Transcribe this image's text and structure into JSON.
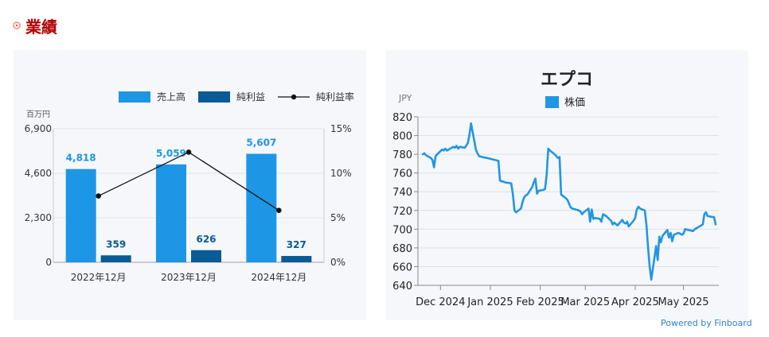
{
  "section": {
    "title": "業績"
  },
  "chart_data": [
    {
      "type": "bar",
      "categories": [
        "2022年12月",
        "2023年12月",
        "2024年12月"
      ],
      "series": [
        {
          "name": "売上高",
          "type": "bar",
          "axis": "left",
          "color": "#1e96e6",
          "values": [
            4818,
            5059,
            5607
          ],
          "labels": [
            "4,818",
            "5,059",
            "5,607"
          ]
        },
        {
          "name": "純利益",
          "type": "bar",
          "axis": "left",
          "color": "#0a5a96",
          "values": [
            359,
            626,
            327
          ],
          "labels": [
            "359",
            "626",
            "327"
          ]
        },
        {
          "name": "純利益率",
          "type": "line",
          "axis": "right",
          "color": "#111111",
          "values": [
            7.45,
            12.37,
            5.83
          ]
        }
      ],
      "y_left": {
        "unit": "百万円",
        "ylim": [
          0,
          6900
        ],
        "ticks": [
          0,
          2300,
          4600,
          6900
        ],
        "tick_labels": [
          "0",
          "2,300",
          "4,600",
          "6,900"
        ]
      },
      "y_right": {
        "ylim": [
          0,
          15
        ],
        "ticks": [
          0,
          5,
          10,
          15
        ],
        "tick_labels": [
          "0%",
          "5%",
          "10%",
          "15%"
        ]
      },
      "grid": true,
      "legend": "top-right"
    },
    {
      "type": "line",
      "title": "エプコ",
      "ylabel": "JPY",
      "series": [
        {
          "name": "株価",
          "color": "#2196e3",
          "points": [
            [
              "2024-11-20",
              780
            ],
            [
              "2024-11-21",
              781
            ],
            [
              "2024-11-22",
              779
            ],
            [
              "2024-11-25",
              776
            ],
            [
              "2024-11-26",
              774
            ],
            [
              "2024-11-27",
              766
            ],
            [
              "2024-11-28",
              778
            ],
            [
              "2024-11-29",
              780
            ],
            [
              "2024-12-02",
              785
            ],
            [
              "2024-12-03",
              784
            ],
            [
              "2024-12-04",
              786
            ],
            [
              "2024-12-05",
              784
            ],
            [
              "2024-12-06",
              785
            ],
            [
              "2024-12-09",
              788
            ],
            [
              "2024-12-10",
              787
            ],
            [
              "2024-12-11",
              789
            ],
            [
              "2024-12-12",
              786
            ],
            [
              "2024-12-13",
              788
            ],
            [
              "2024-12-16",
              787
            ],
            [
              "2024-12-17",
              789
            ],
            [
              "2024-12-18",
              792
            ],
            [
              "2024-12-19",
              801
            ],
            [
              "2024-12-20",
              813
            ],
            [
              "2024-12-23",
              785
            ],
            [
              "2024-12-24",
              781
            ],
            [
              "2024-12-25",
              778
            ],
            [
              "2024-12-27",
              777
            ],
            [
              "2024-12-30",
              776
            ],
            [
              "2025-01-06",
              773
            ],
            [
              "2025-01-07",
              752
            ],
            [
              "2025-01-08",
              751
            ],
            [
              "2025-01-09",
              751
            ],
            [
              "2025-01-10",
              750
            ],
            [
              "2025-01-14",
              749
            ],
            [
              "2025-01-15",
              737
            ],
            [
              "2025-01-16",
              720
            ],
            [
              "2025-01-17",
              718
            ],
            [
              "2025-01-20",
              722
            ],
            [
              "2025-01-21",
              729
            ],
            [
              "2025-01-22",
              734
            ],
            [
              "2025-01-23",
              736
            ],
            [
              "2025-01-24",
              737
            ],
            [
              "2025-01-27",
              745
            ],
            [
              "2025-01-28",
              750
            ],
            [
              "2025-01-29",
              754
            ],
            [
              "2025-01-30",
              738
            ],
            [
              "2025-01-31",
              741
            ],
            [
              "2025-02-03",
              742
            ],
            [
              "2025-02-04",
              743
            ],
            [
              "2025-02-05",
              758
            ],
            [
              "2025-02-06",
              786
            ],
            [
              "2025-02-07",
              784
            ],
            [
              "2025-02-10",
              780
            ],
            [
              "2025-02-12",
              776
            ],
            [
              "2025-02-13",
              777
            ],
            [
              "2025-02-14",
              737
            ],
            [
              "2025-02-17",
              733
            ],
            [
              "2025-02-18",
              731
            ],
            [
              "2025-02-19",
              727
            ],
            [
              "2025-02-20",
              723
            ],
            [
              "2025-02-21",
              722
            ],
            [
              "2025-02-25",
              720
            ],
            [
              "2025-02-26",
              719
            ],
            [
              "2025-02-27",
              716
            ],
            [
              "2025-02-28",
              718
            ],
            [
              "2025-03-03",
              722
            ],
            [
              "2025-03-04",
              708
            ],
            [
              "2025-03-05",
              721
            ],
            [
              "2025-03-06",
              711
            ],
            [
              "2025-03-07",
              712
            ],
            [
              "2025-03-10",
              711
            ],
            [
              "2025-03-11",
              708
            ],
            [
              "2025-03-12",
              716
            ],
            [
              "2025-03-13",
              715
            ],
            [
              "2025-03-14",
              714
            ],
            [
              "2025-03-17",
              709
            ],
            [
              "2025-03-18",
              705
            ],
            [
              "2025-03-19",
              707
            ],
            [
              "2025-03-21",
              704
            ],
            [
              "2025-03-24",
              710
            ],
            [
              "2025-03-25",
              707
            ],
            [
              "2025-03-26",
              706
            ],
            [
              "2025-03-27",
              708
            ],
            [
              "2025-03-28",
              703
            ],
            [
              "2025-03-31",
              709
            ],
            [
              "2025-04-01",
              712
            ],
            [
              "2025-04-02",
              721
            ],
            [
              "2025-04-03",
              724
            ],
            [
              "2025-04-04",
              722
            ],
            [
              "2025-04-07",
              720
            ],
            [
              "2025-04-08",
              705
            ],
            [
              "2025-04-09",
              680
            ],
            [
              "2025-04-10",
              660
            ],
            [
              "2025-04-11",
              646
            ],
            [
              "2025-04-14",
              682
            ],
            [
              "2025-04-15",
              667
            ],
            [
              "2025-04-16",
              692
            ],
            [
              "2025-04-17",
              686
            ],
            [
              "2025-04-18",
              693
            ],
            [
              "2025-04-21",
              699
            ],
            [
              "2025-04-22",
              691
            ],
            [
              "2025-04-23",
              696
            ],
            [
              "2025-04-24",
              687
            ],
            [
              "2025-04-25",
              694
            ],
            [
              "2025-04-28",
              696
            ],
            [
              "2025-04-30",
              694
            ],
            [
              "2025-05-01",
              695
            ],
            [
              "2025-05-02",
              700
            ],
            [
              "2025-05-07",
              698
            ],
            [
              "2025-05-08",
              700
            ],
            [
              "2025-05-09",
              701
            ],
            [
              "2025-05-12",
              704
            ],
            [
              "2025-05-13",
              705
            ],
            [
              "2025-05-14",
              716
            ],
            [
              "2025-05-15",
              718
            ],
            [
              "2025-05-16",
              714
            ],
            [
              "2025-05-19",
              713
            ],
            [
              "2025-05-20",
              713
            ],
            [
              "2025-05-21",
              705
            ]
          ]
        }
      ],
      "ylim": [
        640,
        820
      ],
      "yticks": [
        640,
        660,
        680,
        700,
        720,
        740,
        760,
        780,
        800,
        820
      ],
      "xlim": [
        "2024-11-17",
        "2025-05-23"
      ],
      "xticks": [
        {
          "date": "2024-12-01",
          "label": "Dec 2024"
        },
        {
          "date": "2025-01-01",
          "label": "Jan 2025"
        },
        {
          "date": "2025-02-01",
          "label": "Feb 2025"
        },
        {
          "date": "2025-03-01",
          "label": "Mar 2025"
        },
        {
          "date": "2025-04-01",
          "label": "Apr 2025"
        },
        {
          "date": "2025-05-01",
          "label": "May 2025"
        }
      ],
      "grid": true,
      "legend": "top-center"
    }
  ],
  "footer": {
    "powered": "Powered by Finboard"
  }
}
